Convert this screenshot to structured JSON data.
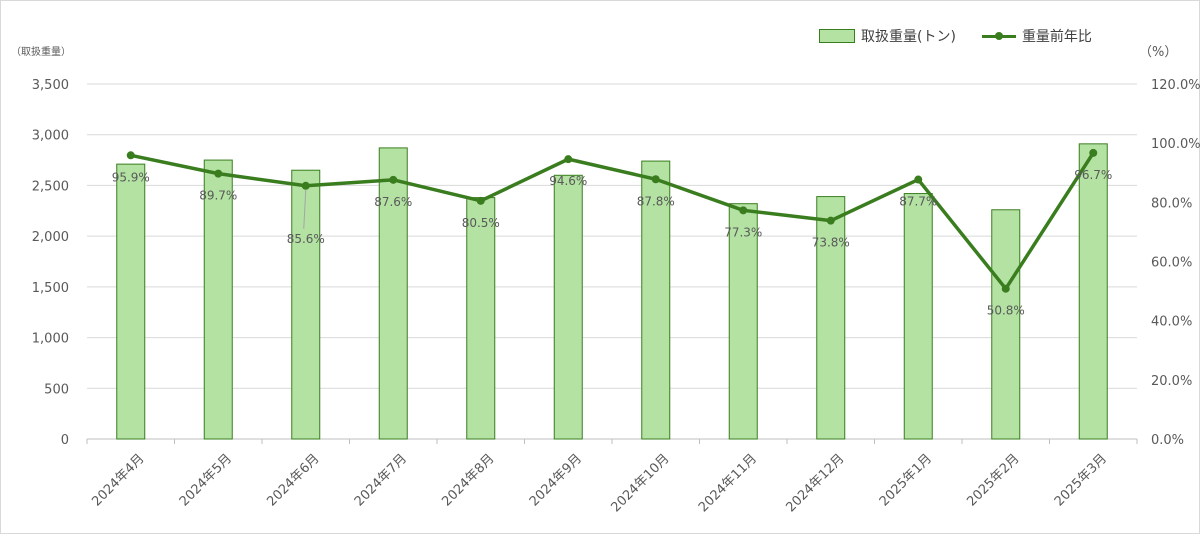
{
  "chart_data": {
    "type": "bar",
    "categories": [
      "2024年4月",
      "2024年5月",
      "2024年6月",
      "2024年7月",
      "2024年8月",
      "2024年9月",
      "2024年10月",
      "2024年11月",
      "2024年12月",
      "2025年1月",
      "2025年2月",
      "2025年3月"
    ],
    "series": [
      {
        "name": "取扱重量(トン)",
        "type": "bar",
        "axis": "left",
        "values": [
          2710,
          2750,
          2650,
          2870,
          2380,
          2600,
          2740,
          2320,
          2390,
          2420,
          2260,
          2910
        ]
      },
      {
        "name": "重量前年比",
        "type": "line",
        "axis": "right",
        "values": [
          95.9,
          89.7,
          85.6,
          87.6,
          80.5,
          94.6,
          87.8,
          77.3,
          73.8,
          87.7,
          50.8,
          96.7
        ],
        "data_labels": [
          "95.9%",
          "89.7%",
          "85.6%",
          "87.6%",
          "80.5%",
          "94.6%",
          "87.8%",
          "77.3%",
          "73.8%",
          "87.7%",
          "50.8%",
          "96.7%"
        ]
      }
    ],
    "y_left": {
      "title": "（取扱重量）",
      "ylim": [
        0,
        3500
      ],
      "ticks": [
        0,
        500,
        1000,
        1500,
        2000,
        2500,
        3000,
        3500
      ],
      "tick_labels": [
        "0",
        "500",
        "1,000",
        "1,500",
        "2,000",
        "2,500",
        "3,000",
        "3,500"
      ]
    },
    "y_right": {
      "title": "（%）",
      "ylim": [
        0,
        120
      ],
      "ticks": [
        0,
        20,
        40,
        60,
        80,
        100,
        120
      ],
      "tick_labels": [
        "0.0%",
        "20.0%",
        "40.0%",
        "60.0%",
        "80.0%",
        "100.0%",
        "120.0%"
      ]
    },
    "grid": true,
    "legend_position": "top-right",
    "colors": {
      "bar_fill": "#b3e2a3",
      "bar_stroke": "#3a7d1f",
      "line": "#3a7d1f",
      "grid": "#d9d9d9",
      "text": "#595959"
    }
  }
}
